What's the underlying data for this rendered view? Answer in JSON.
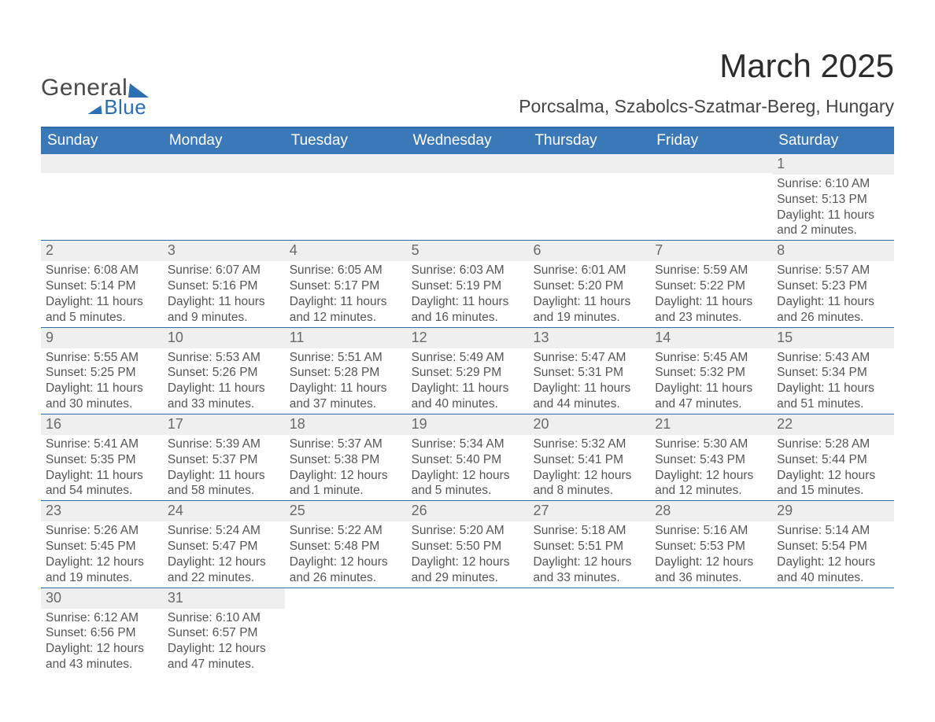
{
  "logo": {
    "line1": "General",
    "line2": "Blue"
  },
  "title": "March 2025",
  "location": "Porcsalma, Szabolcs-Szatmar-Bereg, Hungary",
  "colors": {
    "header_blue": "#3b78b8",
    "rule_blue": "#2f6aad",
    "day_grey": "#efefef",
    "text": "#3a3a3a",
    "logo_grey": "#4a4a4a",
    "logo_blue": "#2b6fb2",
    "background": "#ffffff"
  },
  "typography": {
    "title_fontsize_pt": 32,
    "location_fontsize_pt": 17,
    "weekday_fontsize_pt": 14,
    "daynum_fontsize_pt": 14,
    "body_fontsize_pt": 12,
    "font_family": "Arial"
  },
  "calendar": {
    "type": "table",
    "columns": 7,
    "weekdays": [
      "Sunday",
      "Monday",
      "Tuesday",
      "Wednesday",
      "Thursday",
      "Friday",
      "Saturday"
    ],
    "weeks": [
      [
        null,
        null,
        null,
        null,
        null,
        null,
        {
          "day": 1,
          "sunrise": "6:10 AM",
          "sunset": "5:13 PM",
          "daylight": "11 hours and 2 minutes."
        }
      ],
      [
        {
          "day": 2,
          "sunrise": "6:08 AM",
          "sunset": "5:14 PM",
          "daylight": "11 hours and 5 minutes."
        },
        {
          "day": 3,
          "sunrise": "6:07 AM",
          "sunset": "5:16 PM",
          "daylight": "11 hours and 9 minutes."
        },
        {
          "day": 4,
          "sunrise": "6:05 AM",
          "sunset": "5:17 PM",
          "daylight": "11 hours and 12 minutes."
        },
        {
          "day": 5,
          "sunrise": "6:03 AM",
          "sunset": "5:19 PM",
          "daylight": "11 hours and 16 minutes."
        },
        {
          "day": 6,
          "sunrise": "6:01 AM",
          "sunset": "5:20 PM",
          "daylight": "11 hours and 19 minutes."
        },
        {
          "day": 7,
          "sunrise": "5:59 AM",
          "sunset": "5:22 PM",
          "daylight": "11 hours and 23 minutes."
        },
        {
          "day": 8,
          "sunrise": "5:57 AM",
          "sunset": "5:23 PM",
          "daylight": "11 hours and 26 minutes."
        }
      ],
      [
        {
          "day": 9,
          "sunrise": "5:55 AM",
          "sunset": "5:25 PM",
          "daylight": "11 hours and 30 minutes."
        },
        {
          "day": 10,
          "sunrise": "5:53 AM",
          "sunset": "5:26 PM",
          "daylight": "11 hours and 33 minutes."
        },
        {
          "day": 11,
          "sunrise": "5:51 AM",
          "sunset": "5:28 PM",
          "daylight": "11 hours and 37 minutes."
        },
        {
          "day": 12,
          "sunrise": "5:49 AM",
          "sunset": "5:29 PM",
          "daylight": "11 hours and 40 minutes."
        },
        {
          "day": 13,
          "sunrise": "5:47 AM",
          "sunset": "5:31 PM",
          "daylight": "11 hours and 44 minutes."
        },
        {
          "day": 14,
          "sunrise": "5:45 AM",
          "sunset": "5:32 PM",
          "daylight": "11 hours and 47 minutes."
        },
        {
          "day": 15,
          "sunrise": "5:43 AM",
          "sunset": "5:34 PM",
          "daylight": "11 hours and 51 minutes."
        }
      ],
      [
        {
          "day": 16,
          "sunrise": "5:41 AM",
          "sunset": "5:35 PM",
          "daylight": "11 hours and 54 minutes."
        },
        {
          "day": 17,
          "sunrise": "5:39 AM",
          "sunset": "5:37 PM",
          "daylight": "11 hours and 58 minutes."
        },
        {
          "day": 18,
          "sunrise": "5:37 AM",
          "sunset": "5:38 PM",
          "daylight": "12 hours and 1 minute."
        },
        {
          "day": 19,
          "sunrise": "5:34 AM",
          "sunset": "5:40 PM",
          "daylight": "12 hours and 5 minutes."
        },
        {
          "day": 20,
          "sunrise": "5:32 AM",
          "sunset": "5:41 PM",
          "daylight": "12 hours and 8 minutes."
        },
        {
          "day": 21,
          "sunrise": "5:30 AM",
          "sunset": "5:43 PM",
          "daylight": "12 hours and 12 minutes."
        },
        {
          "day": 22,
          "sunrise": "5:28 AM",
          "sunset": "5:44 PM",
          "daylight": "12 hours and 15 minutes."
        }
      ],
      [
        {
          "day": 23,
          "sunrise": "5:26 AM",
          "sunset": "5:45 PM",
          "daylight": "12 hours and 19 minutes."
        },
        {
          "day": 24,
          "sunrise": "5:24 AM",
          "sunset": "5:47 PM",
          "daylight": "12 hours and 22 minutes."
        },
        {
          "day": 25,
          "sunrise": "5:22 AM",
          "sunset": "5:48 PM",
          "daylight": "12 hours and 26 minutes."
        },
        {
          "day": 26,
          "sunrise": "5:20 AM",
          "sunset": "5:50 PM",
          "daylight": "12 hours and 29 minutes."
        },
        {
          "day": 27,
          "sunrise": "5:18 AM",
          "sunset": "5:51 PM",
          "daylight": "12 hours and 33 minutes."
        },
        {
          "day": 28,
          "sunrise": "5:16 AM",
          "sunset": "5:53 PM",
          "daylight": "12 hours and 36 minutes."
        },
        {
          "day": 29,
          "sunrise": "5:14 AM",
          "sunset": "5:54 PM",
          "daylight": "12 hours and 40 minutes."
        }
      ],
      [
        {
          "day": 30,
          "sunrise": "6:12 AM",
          "sunset": "6:56 PM",
          "daylight": "12 hours and 43 minutes."
        },
        {
          "day": 31,
          "sunrise": "6:10 AM",
          "sunset": "6:57 PM",
          "daylight": "12 hours and 47 minutes."
        },
        null,
        null,
        null,
        null,
        null
      ]
    ],
    "labels": {
      "sunrise": "Sunrise:",
      "sunset": "Sunset:",
      "daylight": "Daylight:"
    }
  }
}
